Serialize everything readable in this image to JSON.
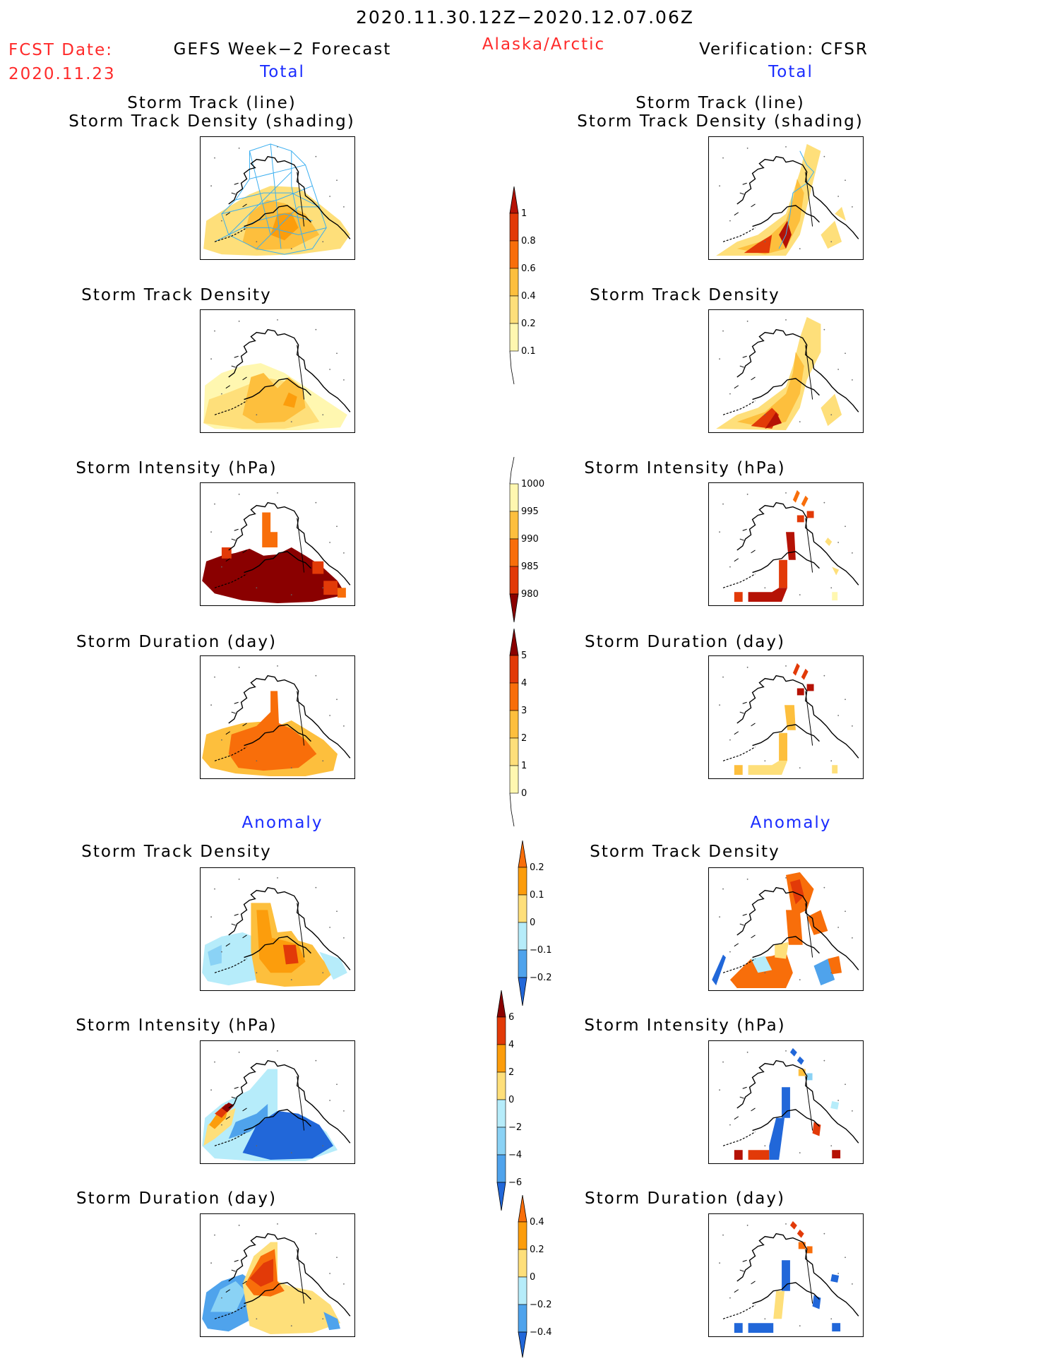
{
  "header": {
    "period": "2020.11.30.12Z−2020.12.07.06Z",
    "fcst_label": "FCST Date:",
    "fcst_date": "2020.11.23",
    "region": "Alaska/Arctic",
    "left_title": "GEFS Week−2 Forecast",
    "right_title": "Verification: CFSR",
    "total_label": "Total",
    "anomaly_label": "Anomaly"
  },
  "panels": {
    "storm_track": [
      "Storm Track (line)",
      "Storm Track Density (shading)"
    ],
    "density": "Storm Track Density",
    "intensity": "Storm Intensity (hPa)",
    "duration": "Storm Duration (day)"
  },
  "colorbars": {
    "density_total": [
      "1",
      "0.8",
      "0.6",
      "0.4",
      "0.2",
      "0.1"
    ],
    "intensity_total": [
      "1000",
      "995",
      "990",
      "985",
      "980"
    ],
    "duration_total": [
      "5",
      "4",
      "3",
      "2",
      "1",
      "0"
    ],
    "density_anom": [
      "0.2",
      "0.1",
      "0",
      "−0.1",
      "−0.2"
    ],
    "intensity_anom": [
      "6",
      "4",
      "2",
      "0",
      "−2",
      "−4",
      "−6"
    ],
    "duration_anom": [
      "0.4",
      "0.2",
      "0",
      "−0.2",
      "−0.4"
    ]
  },
  "colors": {
    "warm": [
      "#fff7b0",
      "#fedf7a",
      "#fdbf3d",
      "#fc9d0c",
      "#f86e0a",
      "#e23a08",
      "#b51205",
      "#8a0000"
    ],
    "cool": [
      "#b6ecfa",
      "#8ad2f5",
      "#4fa3ec",
      "#2167d9"
    ],
    "track_line": "#3aaef0"
  }
}
